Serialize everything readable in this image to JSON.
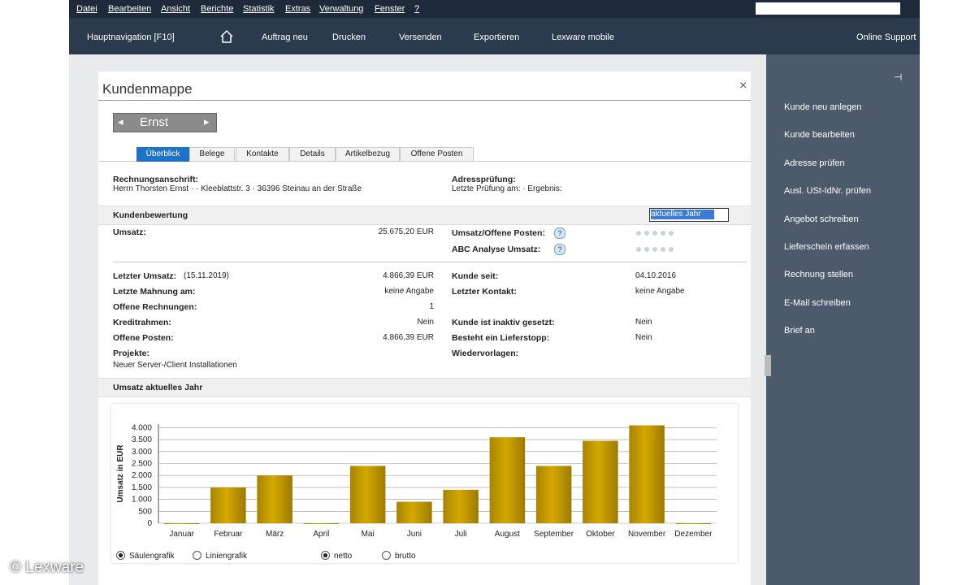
{
  "menu": [
    "Datei",
    "Bearbeiten",
    "Ansicht",
    "Berichte",
    "Statistik",
    "Extras",
    "Verwaltung",
    "Fenster",
    "?"
  ],
  "toolbar": {
    "nav": "Hauptnavigation [F10]",
    "items": [
      "Auftrag neu",
      "Drucken",
      "Versenden",
      "Exportieren",
      "Lexware mobile"
    ],
    "support": "Online Support"
  },
  "window": {
    "title": "Kundenmappe",
    "customer": "Ernst",
    "tabs": [
      "Überblick",
      "Belege",
      "Kontakte",
      "Details",
      "Artikelbezug",
      "Offene Posten"
    ]
  },
  "address": {
    "left_label": "Rechnungsanschrift:",
    "left_value": "Herrn Thorsten Ernst ·   · Kleeblattstr. 3 · 36396 Steinau an der Straße",
    "right_label": "Adressprüfung:",
    "right_value": "Letzte Prüfung am:   ·  Ergebnis:"
  },
  "rating": {
    "header": "Kundenbewertung",
    "period": "aktuelles Jahr",
    "umsatz_label": "Umsatz:",
    "umsatz_value": "25.675,20 EUR",
    "right": [
      "Umsatz/Offene Posten:",
      "ABC Analyse Umsatz:"
    ]
  },
  "details": {
    "left": [
      {
        "label": "Letzter Umsatz:",
        "note": "(15.11.2019)",
        "value": "4.866,39 EUR"
      },
      {
        "label": "Letzte Mahnung am:",
        "value": "keine Angabe"
      },
      {
        "label": "Offene Rechnungen:",
        "value": "1"
      },
      {
        "label": "Kreditrahmen:",
        "value": "Nein"
      },
      {
        "label": "Offene Posten:",
        "value": "4.866,39 EUR"
      },
      {
        "label": "Projekte:",
        "value": "Neuer Server-/Client Installationen"
      }
    ],
    "right": [
      {
        "label": "Kunde seit:",
        "value": "04.10.2016"
      },
      {
        "label": "Letzter Kontakt:",
        "value": "keine Angabe"
      },
      {
        "label": "Kunde ist inaktiv gesetzt:",
        "value": "Nein"
      },
      {
        "label": "Besteht ein Lieferstopp:",
        "value": "Nein"
      },
      {
        "label": "Wiedervorlagen:"
      }
    ]
  },
  "chart_section": "Umsatz aktuelles Jahr",
  "chart_data": {
    "type": "bar",
    "y_label": "Umsatz in EUR",
    "categories": [
      "Januar",
      "Februar",
      "März",
      "April",
      "Mai",
      "Juni",
      "Juli",
      "August",
      "September",
      "Oktober",
      "November",
      "Dezember"
    ],
    "values": [
      0,
      1500,
      2000,
      0,
      2400,
      900,
      1400,
      3600,
      2400,
      3450,
      4100,
      0
    ],
    "color": "#d4a800",
    "ylim": [
      0,
      4150
    ],
    "yticks": [
      0,
      500,
      {
        "value": 1000,
        "label": "1.000"
      },
      {
        "value": 1500,
        "label": "1.500"
      },
      {
        "value": 2000,
        "label": "2.000"
      },
      {
        "value": 2500,
        "label": "2.500"
      },
      {
        "value": 3000,
        "label": "3.000"
      },
      {
        "value": 3500,
        "label": "3.500"
      },
      {
        "value": 4000,
        "label": "4.000"
      }
    ],
    "grid": true
  },
  "options": [
    "Säulengrafik",
    "Liniengrafik",
    "netto",
    "brutto"
  ],
  "sidebar": [
    "Kunde neu anlegen",
    "Kunde bearbeiten",
    "Adresse prüfen",
    "Ausl. USt-IdNr. prüfen",
    "Angebot schreiben",
    "Lieferschein erfassen",
    "Rechnung stellen",
    "E-Mail schreiben",
    "Brief an"
  ],
  "copyright": "© Lexware"
}
